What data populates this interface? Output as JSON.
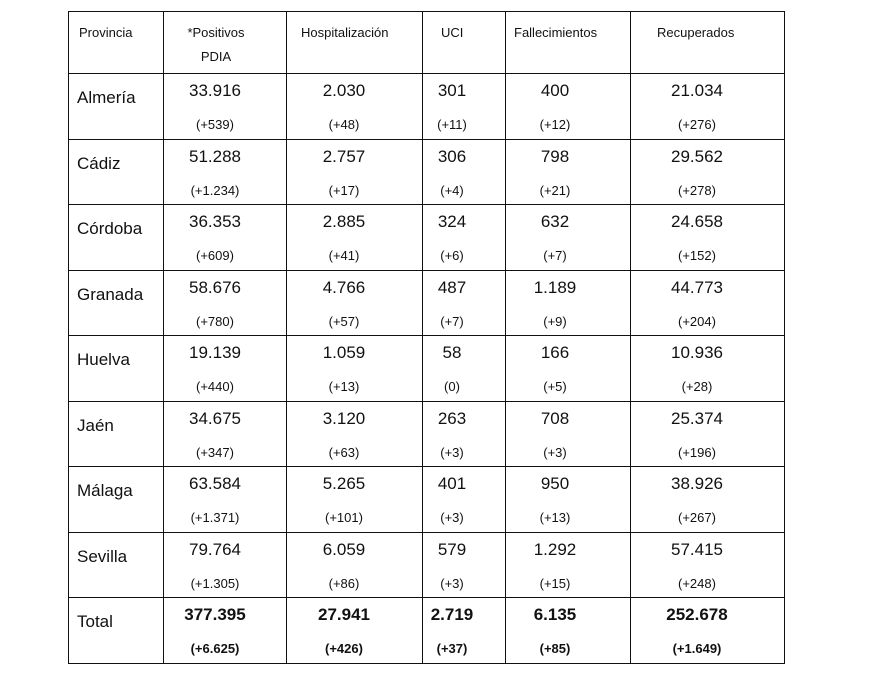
{
  "headers": [
    "Provincia",
    "*Positivos",
    "PDIA",
    "Hospitalización",
    "UCI",
    "Fallecimientos",
    "Recuperados"
  ],
  "rows": [
    {
      "name": "Almería",
      "values": [
        "33.916",
        "2.030",
        "301",
        "400",
        "21.034"
      ],
      "deltas": [
        "(+539)",
        "(+48)",
        "(+11)",
        "(+12)",
        "(+276)"
      ]
    },
    {
      "name": "Cádiz",
      "values": [
        "51.288",
        "2.757",
        "306",
        "798",
        "29.562"
      ],
      "deltas": [
        "(+1.234)",
        "(+17)",
        "(+4)",
        "(+21)",
        "(+278)"
      ]
    },
    {
      "name": "Córdoba",
      "values": [
        "36.353",
        "2.885",
        "324",
        "632",
        "24.658"
      ],
      "deltas": [
        "(+609)",
        "(+41)",
        "(+6)",
        "(+7)",
        "(+152)"
      ]
    },
    {
      "name": "Granada",
      "values": [
        "58.676",
        "4.766",
        "487",
        "1.189",
        "44.773"
      ],
      "deltas": [
        "(+780)",
        "(+57)",
        "(+7)",
        "(+9)",
        "(+204)"
      ]
    },
    {
      "name": "Huelva",
      "values": [
        "19.139",
        "1.059",
        "58",
        "166",
        "10.936"
      ],
      "deltas": [
        "(+440)",
        "(+13)",
        "(0)",
        "(+5)",
        "(+28)"
      ]
    },
    {
      "name": "Jaén",
      "values": [
        "34.675",
        "3.120",
        "263",
        "708",
        "25.374"
      ],
      "deltas": [
        "(+347)",
        "(+63)",
        "(+3)",
        "(+3)",
        "(+196)"
      ]
    },
    {
      "name": "Málaga",
      "values": [
        "63.584",
        "5.265",
        "401",
        "950",
        "38.926"
      ],
      "deltas": [
        "(+1.371)",
        "(+101)",
        "(+3)",
        "(+13)",
        "(+267)"
      ]
    },
    {
      "name": "Sevilla",
      "values": [
        "79.764",
        "6.059",
        "579",
        "1.292",
        "57.415"
      ],
      "deltas": [
        "(+1.305)",
        "(+86)",
        "(+3)",
        "(+15)",
        "(+248)"
      ]
    },
    {
      "name": "Total",
      "values": [
        "377.395",
        "27.941",
        "2.719",
        "6.135",
        "252.678"
      ],
      "deltas": [
        "(+6.625)",
        "(+426)",
        "(+37)",
        "(+85)",
        "(+1.649)"
      ]
    }
  ]
}
